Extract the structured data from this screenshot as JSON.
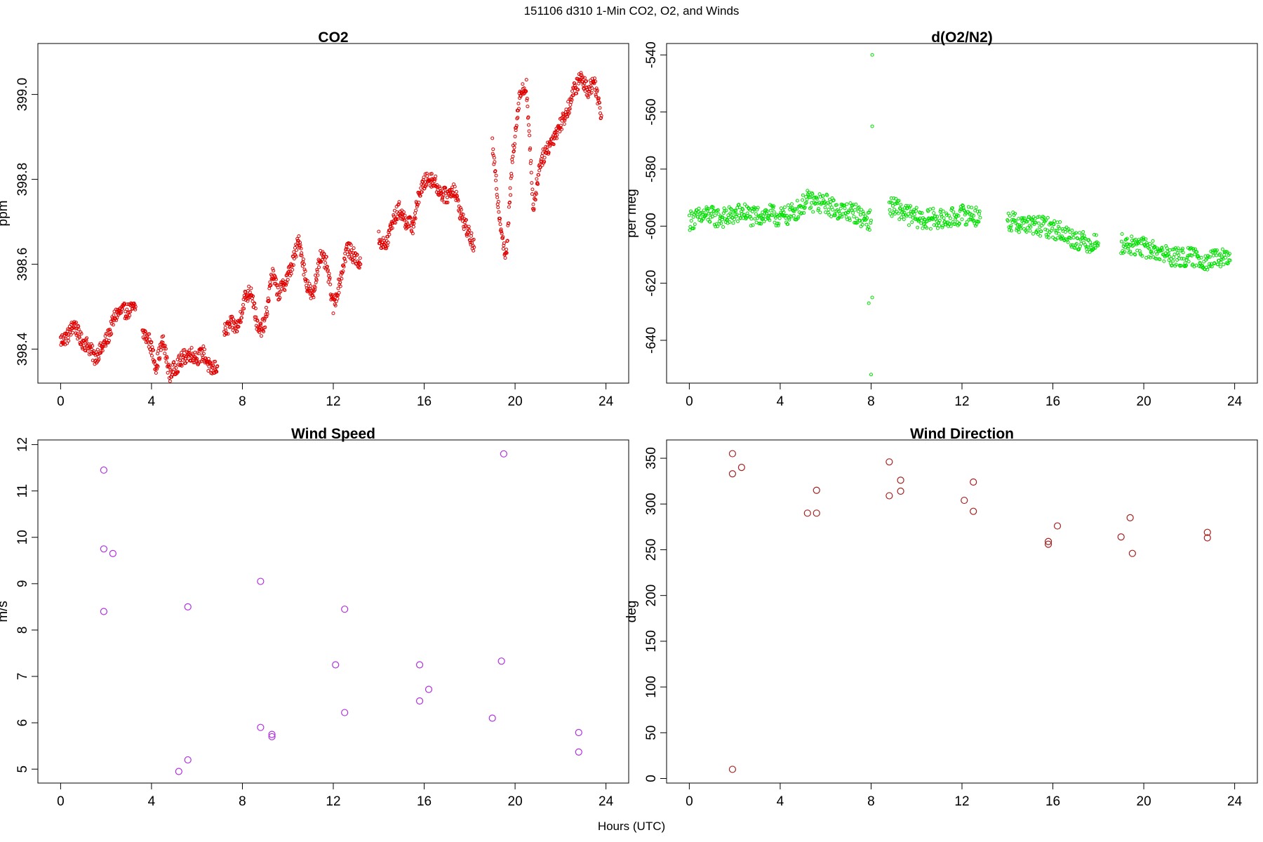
{
  "page": {
    "title": "151106   d310   1-Min CO2, O2, and Winds",
    "xlabel": "Hours (UTC)"
  },
  "chart_data": [
    {
      "id": "co2",
      "type": "scatter",
      "title": "CO2",
      "ylabel": "ppm",
      "xlim": [
        -1,
        25
      ],
      "ylim": [
        398.32,
        399.12
      ],
      "xticks": [
        0,
        4,
        8,
        12,
        16,
        20,
        24
      ],
      "yticks": [
        398.4,
        398.6,
        398.8,
        399.0
      ],
      "ytick_labels": [
        "398.4",
        "398.6",
        "398.8",
        "399.0"
      ],
      "color": "#e00000",
      "marker": "small-open-circle",
      "segments": [
        {
          "x": [
            0.0,
            0.3,
            0.6,
            0.9,
            1.2,
            1.5,
            1.8,
            2.1,
            2.4,
            2.7,
            3.0,
            3.3
          ],
          "y": [
            398.42,
            398.43,
            398.46,
            398.42,
            398.41,
            398.38,
            398.4,
            398.43,
            398.48,
            398.49,
            398.49,
            398.5
          ]
        },
        {
          "x": [
            3.6,
            3.9,
            4.2,
            4.5,
            4.8,
            5.1,
            5.4,
            5.7,
            6.0,
            6.3,
            6.6,
            6.9
          ],
          "y": [
            398.44,
            398.42,
            398.36,
            398.42,
            398.34,
            398.36,
            398.38,
            398.39,
            398.38,
            398.39,
            398.35,
            398.36
          ]
        },
        {
          "x": [
            7.2,
            7.5,
            7.8,
            8.1,
            8.4,
            8.7,
            9.0,
            9.3,
            9.6,
            9.9,
            10.2,
            10.5,
            10.8,
            11.1,
            11.4,
            11.7,
            12.0,
            12.3,
            12.6,
            12.9,
            13.2
          ],
          "y": [
            398.44,
            398.46,
            398.45,
            398.52,
            398.54,
            398.44,
            398.46,
            398.58,
            398.53,
            398.56,
            398.6,
            398.66,
            398.56,
            398.52,
            398.62,
            398.6,
            398.5,
            398.56,
            398.64,
            398.62,
            398.6
          ]
        },
        {
          "x": [
            14.0,
            14.3,
            14.6,
            14.9,
            15.2,
            15.5,
            15.8,
            16.1,
            16.4,
            16.7,
            17.0,
            17.3,
            17.6,
            17.9,
            18.2
          ],
          "y": [
            398.66,
            398.64,
            398.7,
            398.73,
            398.7,
            398.69,
            398.77,
            398.8,
            398.8,
            398.77,
            398.76,
            398.78,
            398.72,
            398.68,
            398.64
          ]
        },
        {
          "x": [
            19.0,
            19.3,
            19.6,
            19.9,
            20.2,
            20.5,
            20.8,
            21.1,
            21.4,
            21.7,
            22.0,
            22.3,
            22.6,
            22.9,
            23.2,
            23.5,
            23.8
          ],
          "y": [
            398.88,
            398.72,
            398.61,
            398.86,
            399.0,
            399.02,
            398.73,
            398.84,
            398.87,
            398.9,
            398.93,
            398.96,
            399.01,
            399.04,
            399.01,
            399.03,
            398.95
          ]
        }
      ]
    },
    {
      "id": "o2",
      "type": "scatter",
      "title": "d(O2/N2)",
      "ylabel": "per meg",
      "xlim": [
        -1,
        25
      ],
      "ylim": [
        -655,
        -536
      ],
      "xticks": [
        0,
        4,
        8,
        12,
        16,
        20,
        24
      ],
      "yticks": [
        -640,
        -620,
        -600,
        -580,
        -560,
        -540
      ],
      "ytick_labels": [
        "-640",
        "-620",
        "-600",
        "-580",
        "-560",
        "-540"
      ],
      "color": "#00e000",
      "marker": "small-open-circle",
      "segments": [
        {
          "x": [
            0.0,
            0.4,
            0.8,
            1.2,
            1.6,
            2.0,
            2.4,
            2.8,
            3.2,
            3.6,
            4.0,
            4.4,
            4.8,
            5.2,
            5.6,
            6.0,
            6.4,
            6.8,
            7.2,
            7.6,
            8.0
          ],
          "y": [
            -598,
            -597,
            -596,
            -597,
            -597,
            -596,
            -595,
            -597,
            -596,
            -596,
            -597,
            -596,
            -594,
            -591,
            -592,
            -592,
            -594,
            -595,
            -595,
            -597,
            -598
          ]
        },
        {
          "x": [
            8.8,
            9.2,
            9.6,
            10.0,
            10.4,
            10.8,
            11.2,
            11.6,
            12.0,
            12.4,
            12.8
          ],
          "y": [
            -593,
            -594,
            -596,
            -597,
            -598,
            -597,
            -598,
            -597,
            -596,
            -596,
            -597
          ]
        },
        {
          "x": [
            14.0,
            14.4,
            14.8,
            15.2,
            15.6,
            16.0,
            16.4,
            16.8,
            17.2,
            17.6,
            18.0
          ],
          "y": [
            -598,
            -599,
            -599,
            -600,
            -600,
            -601,
            -602,
            -604,
            -605,
            -606,
            -606
          ]
        },
        {
          "x": [
            19.0,
            19.4,
            19.8,
            20.2,
            20.6,
            21.0,
            21.4,
            21.8,
            22.2,
            22.6,
            23.0,
            23.4,
            23.8
          ],
          "y": [
            -606,
            -607,
            -607,
            -608,
            -609,
            -610,
            -611,
            -611,
            -611,
            -612,
            -612,
            -611,
            -612
          ]
        }
      ],
      "outliers": {
        "x": [
          7.9,
          8.0,
          8.05,
          8.05,
          8.05
        ],
        "y": [
          -627,
          -652,
          -540,
          -565,
          -625
        ]
      }
    },
    {
      "id": "wind_speed",
      "type": "scatter",
      "title": "Wind Speed",
      "ylabel": "m/s",
      "xlim": [
        -1,
        25
      ],
      "ylim": [
        4.7,
        12.1
      ],
      "xticks": [
        0,
        4,
        8,
        12,
        16,
        20,
        24
      ],
      "yticks": [
        5,
        6,
        7,
        8,
        9,
        10,
        11,
        12
      ],
      "ytick_labels": [
        "5",
        "6",
        "7",
        "8",
        "9",
        "10",
        "11",
        "12"
      ],
      "color": "#b030e0",
      "marker": "open-circle",
      "x": [
        1.9,
        1.9,
        1.9,
        2.3,
        5.2,
        5.6,
        5.6,
        8.8,
        8.8,
        9.3,
        9.3,
        12.1,
        12.5,
        12.5,
        15.8,
        15.8,
        16.2,
        19.0,
        19.4,
        19.5,
        22.8,
        22.8
      ],
      "y": [
        11.45,
        9.75,
        8.4,
        9.65,
        4.95,
        5.2,
        8.5,
        9.05,
        5.9,
        5.75,
        5.7,
        7.25,
        6.22,
        8.45,
        7.25,
        6.47,
        6.72,
        6.1,
        7.33,
        11.8,
        5.79,
        5.37
      ]
    },
    {
      "id": "wind_direction",
      "type": "scatter",
      "title": "Wind Direction",
      "ylabel": "deg",
      "xlim": [
        -1,
        25
      ],
      "ylim": [
        -5,
        370
      ],
      "xticks": [
        0,
        4,
        8,
        12,
        16,
        20,
        24
      ],
      "yticks": [
        0,
        50,
        100,
        150,
        200,
        250,
        300,
        350
      ],
      "ytick_labels": [
        "0",
        "50",
        "100",
        "150",
        "200",
        "250",
        "300",
        "350"
      ],
      "color": "#a52020",
      "marker": "open-circle",
      "x": [
        1.9,
        1.9,
        1.9,
        2.3,
        5.2,
        5.6,
        5.6,
        8.8,
        8.8,
        9.3,
        9.3,
        12.1,
        12.5,
        12.5,
        15.8,
        15.8,
        16.2,
        19.0,
        19.4,
        19.5,
        22.8,
        22.8
      ],
      "y": [
        355,
        333,
        10,
        340,
        290,
        290,
        315,
        346,
        309,
        326,
        314,
        304,
        324,
        292,
        259,
        256,
        276,
        264,
        285,
        246,
        269,
        263
      ]
    }
  ]
}
